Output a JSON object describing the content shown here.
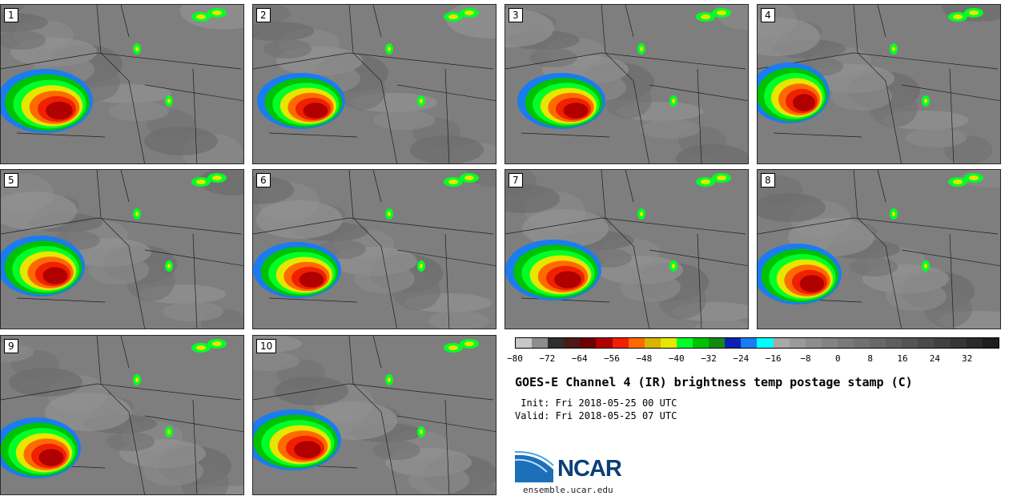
{
  "panels": [
    {
      "label": "1"
    },
    {
      "label": "2"
    },
    {
      "label": "3"
    },
    {
      "label": "4"
    },
    {
      "label": "5"
    },
    {
      "label": "6"
    },
    {
      "label": "7"
    },
    {
      "label": "8"
    },
    {
      "label": "9"
    },
    {
      "label": "10"
    }
  ],
  "colorbar": {
    "colors": [
      "#c7c7c7",
      "#8d8d8d",
      "#2f2f2f",
      "#4d1a1a",
      "#6e0000",
      "#b00000",
      "#f02000",
      "#ff6a00",
      "#d9b400",
      "#e6e600",
      "#00ff28",
      "#00c200",
      "#138a13",
      "#0b21b5",
      "#1a7cf0",
      "#00ffff",
      "#a8a8a8",
      "#9a9a9a",
      "#8e8e8e",
      "#848484",
      "#7a7a7a",
      "#717171",
      "#686868",
      "#5e5e5e",
      "#545454",
      "#4a4a4a",
      "#404040",
      "#363636",
      "#2a2a2a",
      "#1e1e1e"
    ],
    "tick_labels": [
      "−80",
      "−72",
      "−64",
      "−56",
      "−48",
      "−40",
      "−32",
      "−24",
      "−16",
      "−8",
      "0",
      "8",
      "16",
      "24",
      "32"
    ]
  },
  "title": "GOES-E Channel 4 (IR) brightness temp postage stamp (C)",
  "init": " Init: Fri 2018-05-25 00 UTC",
  "valid": "Valid: Fri 2018-05-25 07 UTC",
  "logo": {
    "text": "NCAR",
    "url": "ensemble.ucar.edu"
  }
}
